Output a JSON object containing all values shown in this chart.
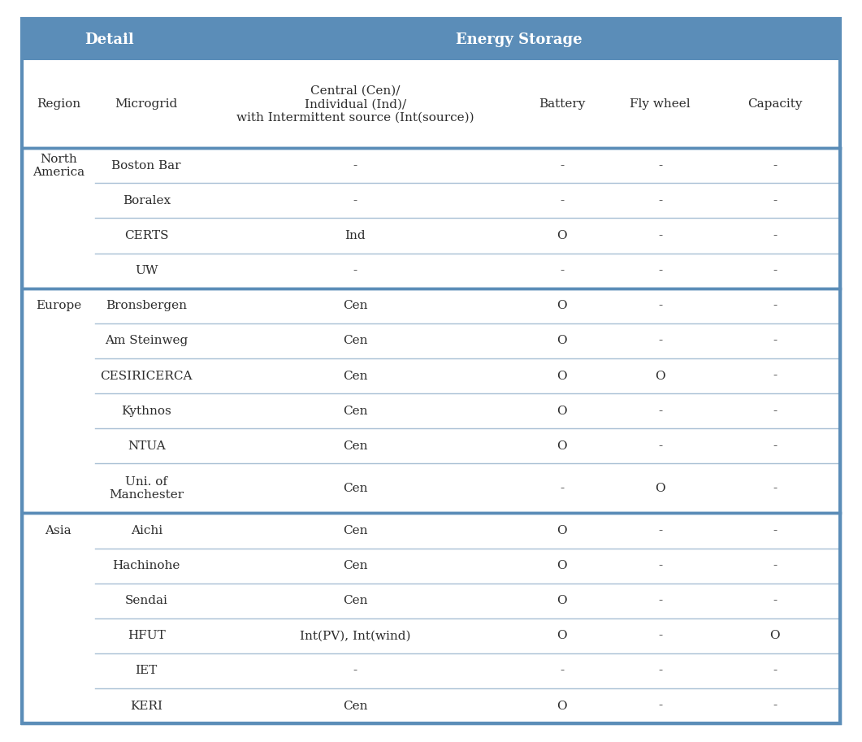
{
  "header_bg_color": "#5b8db8",
  "header_text_color": "#ffffff",
  "row_text_color": "#2c2c2c",
  "divider_color_thick": "#5b8db8",
  "divider_color_thin": "#a8bfd4",
  "outer_border_color": "#5b8db8",
  "col_headers": [
    "Region",
    "Microgrid",
    "Central (Cen)/\nIndividual (Ind)/\nwith Intermittent source (Int(source))",
    "Battery",
    "Fly wheel",
    "Capacity"
  ],
  "rows": [
    {
      "region": "North\nAmerica",
      "microgrid": "Boston Bar",
      "central": "-",
      "battery": "-",
      "flywheel": "-",
      "capacity": "-",
      "thick_above": true,
      "tall": false
    },
    {
      "region": "",
      "microgrid": "Boralex",
      "central": "-",
      "battery": "-",
      "flywheel": "-",
      "capacity": "-",
      "thick_above": false,
      "tall": false
    },
    {
      "region": "",
      "microgrid": "CERTS",
      "central": "Ind",
      "battery": "O",
      "flywheel": "-",
      "capacity": "-",
      "thick_above": false,
      "tall": false
    },
    {
      "region": "",
      "microgrid": "UW",
      "central": "-",
      "battery": "-",
      "flywheel": "-",
      "capacity": "-",
      "thick_above": false,
      "tall": false
    },
    {
      "region": "Europe",
      "microgrid": "Bronsbergen",
      "central": "Cen",
      "battery": "O",
      "flywheel": "-",
      "capacity": "-",
      "thick_above": true,
      "tall": false
    },
    {
      "region": "",
      "microgrid": "Am Steinweg",
      "central": "Cen",
      "battery": "O",
      "flywheel": "-",
      "capacity": "-",
      "thick_above": false,
      "tall": false
    },
    {
      "region": "",
      "microgrid": "CESIRICERCA",
      "central": "Cen",
      "battery": "O",
      "flywheel": "O",
      "capacity": "-",
      "thick_above": false,
      "tall": false
    },
    {
      "region": "",
      "microgrid": "Kythnos",
      "central": "Cen",
      "battery": "O",
      "flywheel": "-",
      "capacity": "-",
      "thick_above": false,
      "tall": false
    },
    {
      "region": "",
      "microgrid": "NTUA",
      "central": "Cen",
      "battery": "O",
      "flywheel": "-",
      "capacity": "-",
      "thick_above": false,
      "tall": false
    },
    {
      "region": "",
      "microgrid": "Uni. of\nManchester",
      "central": "Cen",
      "battery": "-",
      "flywheel": "O",
      "capacity": "-",
      "thick_above": false,
      "tall": true
    },
    {
      "region": "Asia",
      "microgrid": "Aichi",
      "central": "Cen",
      "battery": "O",
      "flywheel": "-",
      "capacity": "-",
      "thick_above": true,
      "tall": false
    },
    {
      "region": "",
      "microgrid": "Hachinohe",
      "central": "Cen",
      "battery": "O",
      "flywheel": "-",
      "capacity": "-",
      "thick_above": false,
      "tall": false
    },
    {
      "region": "",
      "microgrid": "Sendai",
      "central": "Cen",
      "battery": "O",
      "flywheel": "-",
      "capacity": "-",
      "thick_above": false,
      "tall": false
    },
    {
      "region": "",
      "microgrid": "HFUT",
      "central": "Int(PV), Int(wind)",
      "battery": "O",
      "flywheel": "-",
      "capacity": "O",
      "thick_above": false,
      "tall": false
    },
    {
      "region": "",
      "microgrid": "IET",
      "central": "-",
      "battery": "-",
      "flywheel": "-",
      "capacity": "-",
      "thick_above": false,
      "tall": false
    },
    {
      "region": "",
      "microgrid": "KERI",
      "central": "Cen",
      "battery": "O",
      "flywheel": "-",
      "capacity": "-",
      "thick_above": false,
      "tall": false
    }
  ],
  "figsize": [
    10.61,
    9.13
  ],
  "dpi": 100,
  "font_size": 11,
  "header_font_size": 13
}
